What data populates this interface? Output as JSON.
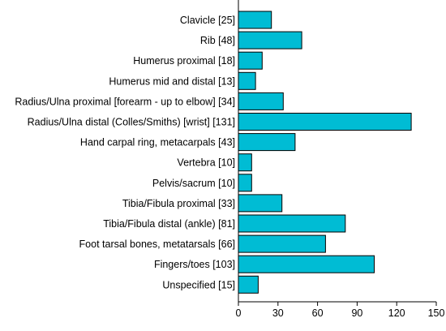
{
  "chart_data": {
    "type": "bar",
    "orientation": "horizontal",
    "title": "",
    "xlabel": "",
    "ylabel": "",
    "categories": [
      "Clavicle [25]",
      "Rib [48]",
      "Humerus proximal [18]",
      "Humerus mid and distal [13]",
      "Radius/Ulna proximal [forearm - up to elbow] [34]",
      "Radius/Ulna distal (Colles/Smiths) [wrist] [131]",
      "Hand carpal ring, metacarpals [43]",
      "Vertebra [10]",
      "Pelvis/sacrum [10]",
      "Tibia/Fibula proximal [33]",
      "Tibia/Fibula distal (ankle) [81]",
      "Foot tarsal bones, metatarsals [66]",
      "Fingers/toes [103]",
      "Unspecified [15]"
    ],
    "values": [
      25,
      48,
      18,
      13,
      34,
      131,
      43,
      10,
      10,
      33,
      81,
      66,
      103,
      15
    ],
    "xlim": [
      0,
      150
    ],
    "xticks": [
      0,
      30,
      60,
      90,
      120,
      150
    ],
    "bar_color": "#00bcd4",
    "bar_edge_color": "#000000",
    "grid": false,
    "legend": "none"
  }
}
